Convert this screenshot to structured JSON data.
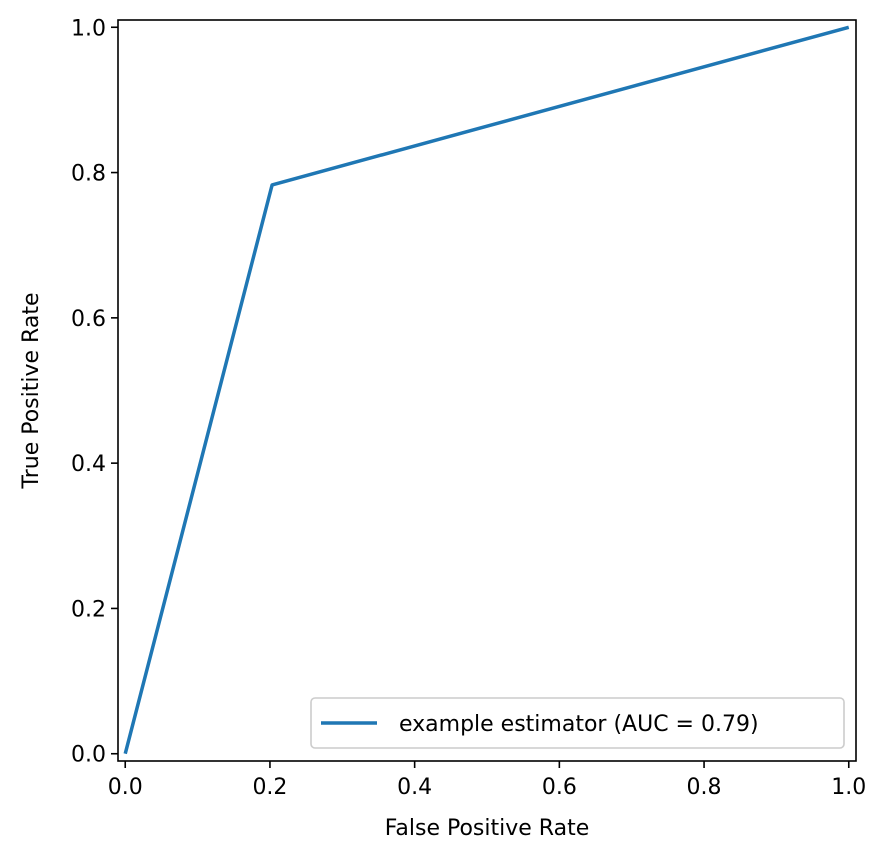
{
  "chart_data": {
    "type": "line",
    "title": "",
    "xlabel": "False Positive Rate",
    "ylabel": "True Positive Rate",
    "xlim": [
      -0.01,
      1.01
    ],
    "ylim": [
      -0.01,
      1.01
    ],
    "xticks": [
      0.0,
      0.2,
      0.4,
      0.6,
      0.8,
      1.0
    ],
    "yticks": [
      0.0,
      0.2,
      0.4,
      0.6,
      0.8,
      1.0
    ],
    "xtick_labels": [
      "0.0",
      "0.2",
      "0.4",
      "0.6",
      "0.8",
      "1.0"
    ],
    "ytick_labels": [
      "0.0",
      "0.2",
      "0.4",
      "0.6",
      "0.8",
      "1.0"
    ],
    "grid": false,
    "legend_position": "lower-right",
    "series": [
      {
        "name": "example estimator (AUC = 0.79)",
        "color": "#1f77b4",
        "x": [
          0.0,
          0.203,
          1.0
        ],
        "y": [
          0.0,
          0.783,
          1.0
        ]
      }
    ]
  }
}
